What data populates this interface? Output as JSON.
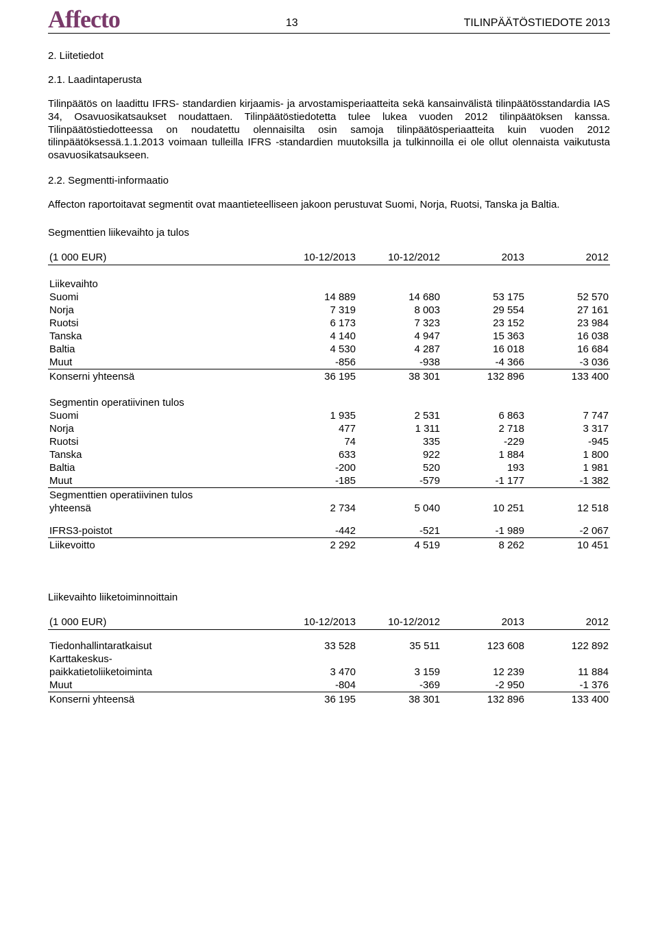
{
  "header": {
    "logo": "Affecto",
    "page_number": "13",
    "doc_title": "TILINPÄÄTÖSTIEDOTE 2013"
  },
  "section_2_title": "2. Liitetiedot",
  "section_21_title": "2.1. Laadintaperusta",
  "para_21": "Tilinpäätös on laadittu IFRS- standardien kirjaamis- ja arvostamisperiaatteita sekä kansainvälistä tilinpäätösstandardia IAS 34, Osavuosikatsaukset noudattaen. Tilinpäätöstiedotetta tulee lukea vuoden 2012 tilinpäätöksen kanssa. Tilinpäätöstiedotteessa on noudatettu olennaisilta osin samoja tilinpäätösperiaatteita kuin vuoden 2012 tilinpäätöksessä.1.1.2013 voimaan tulleilla IFRS -standardien muutoksilla ja tulkinnoilla ei ole ollut olennaista vaikutusta osavuosikatsaukseen.",
  "section_22_title": "2.2. Segmentti-informaatio",
  "para_22": "Affecton raportoitavat segmentit ovat maantieteelliseen jakoon perustuvat Suomi, Norja, Ruotsi, Tanska ja Baltia.",
  "table1_heading": "Segmenttien liikevaihto ja tulos",
  "col_headers": {
    "c0": "(1 000 EUR)",
    "c1": "10-12/2013",
    "c2": "10-12/2012",
    "c3": "2013",
    "c4": "2012"
  },
  "group1_title": "Liikevaihto",
  "g1_rows": [
    {
      "label": "Suomi",
      "v": [
        "14 889",
        "14 680",
        "53 175",
        "52 570"
      ]
    },
    {
      "label": "Norja",
      "v": [
        "7 319",
        "8 003",
        "29 554",
        "27 161"
      ]
    },
    {
      "label": "Ruotsi",
      "v": [
        "6 173",
        "7 323",
        "23 152",
        "23 984"
      ]
    },
    {
      "label": "Tanska",
      "v": [
        "4 140",
        "4 947",
        "15 363",
        "16 038"
      ]
    },
    {
      "label": "Baltia",
      "v": [
        "4 530",
        "4 287",
        "16 018",
        "16 684"
      ]
    },
    {
      "label": "Muut",
      "v": [
        "-856",
        "-938",
        "-4 366",
        "-3 036"
      ]
    }
  ],
  "g1_total": {
    "label": "Konserni yhteensä",
    "v": [
      "36 195",
      "38 301",
      "132 896",
      "133 400"
    ]
  },
  "group2_title": "Segmentin operatiivinen tulos",
  "g2_rows": [
    {
      "label": "Suomi",
      "v": [
        "1 935",
        "2 531",
        "6 863",
        "7 747"
      ]
    },
    {
      "label": "Norja",
      "v": [
        "477",
        "1 311",
        "2 718",
        "3 317"
      ]
    },
    {
      "label": "Ruotsi",
      "v": [
        "74",
        "335",
        "-229",
        "-945"
      ]
    },
    {
      "label": "Tanska",
      "v": [
        "633",
        "922",
        "1 884",
        "1 800"
      ]
    },
    {
      "label": "Baltia",
      "v": [
        "-200",
        "520",
        "193",
        "1 981"
      ]
    },
    {
      "label": "Muut",
      "v": [
        "-185",
        "-579",
        "-1 177",
        "-1 382"
      ]
    }
  ],
  "g2_total_label1": "Segmenttien operatiivinen tulos",
  "g2_total": {
    "label": "yhteensä",
    "v": [
      "2 734",
      "5 040",
      "10 251",
      "12 518"
    ]
  },
  "g3_rows": [
    {
      "label": "IFRS3-poistot",
      "v": [
        "-442",
        "-521",
        "-1 989",
        "-2 067"
      ]
    }
  ],
  "g3_total": {
    "label": "Liikevoitto",
    "v": [
      "2 292",
      "4 519",
      "8 262",
      "10 451"
    ]
  },
  "table2_heading": "Liikevaihto liiketoiminnoittain",
  "t2_rows": [
    {
      "label": "Tiedonhallintaratkaisut",
      "v": [
        "33 528",
        "35 511",
        "123 608",
        "122 892"
      ]
    }
  ],
  "t2_split_label1": "Karttakeskus-",
  "t2_split_row": {
    "label": "paikkatietoliiketoiminta",
    "v": [
      "3 470",
      "3 159",
      "12 239",
      "11 884"
    ]
  },
  "t2_rows2": [
    {
      "label": "Muut",
      "v": [
        "-804",
        "-369",
        "-2 950",
        "-1 376"
      ]
    }
  ],
  "t2_total": {
    "label": "Konserni yhteensä",
    "v": [
      "36 195",
      "38 301",
      "132 896",
      "133 400"
    ]
  },
  "style": {
    "brand_color": "#7a3a6a",
    "text_color": "#000000",
    "background_color": "#ffffff",
    "border_color": "#000000",
    "body_fontsize": 15,
    "logo_fontsize": 36
  }
}
